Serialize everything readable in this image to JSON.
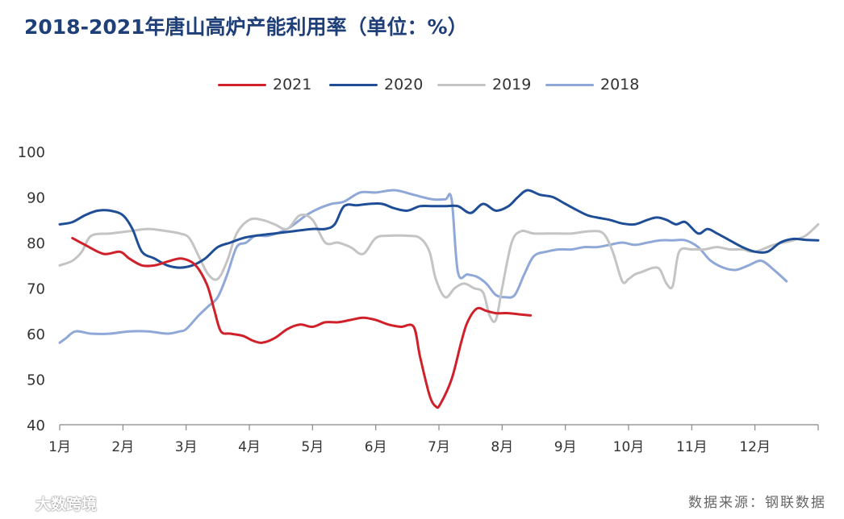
{
  "chart_data": {
    "type": "line",
    "title": "2018-2021年唐山高炉产能利用率（单位：%）",
    "source": "数据来源：钢联数据",
    "watermark": "大数跨境",
    "ylim": [
      40,
      100
    ],
    "yticks": [
      40,
      50,
      60,
      70,
      80,
      90,
      100
    ],
    "xlim": [
      1,
      13
    ],
    "xticks": [
      {
        "label": "1月",
        "pos": 1
      },
      {
        "label": "2月",
        "pos": 2
      },
      {
        "label": "3月",
        "pos": 3
      },
      {
        "label": "4月",
        "pos": 4
      },
      {
        "label": "5月",
        "pos": 5
      },
      {
        "label": "6月",
        "pos": 6
      },
      {
        "label": "7月",
        "pos": 7
      },
      {
        "label": "8月",
        "pos": 8
      },
      {
        "label": "9月",
        "pos": 9
      },
      {
        "label": "10月",
        "pos": 10
      },
      {
        "label": "11月",
        "pos": 11
      },
      {
        "label": "12月",
        "pos": 12
      }
    ],
    "legend_position": "top-center",
    "series": [
      {
        "name": "2021",
        "color": "#d0202a",
        "x": [
          1.2,
          1.4,
          1.7,
          1.95,
          2.1,
          2.3,
          2.5,
          2.7,
          2.9,
          3.05,
          3.15,
          3.25,
          3.35,
          3.45,
          3.55,
          3.7,
          3.9,
          4.05,
          4.2,
          4.4,
          4.6,
          4.8,
          5.0,
          5.2,
          5.4,
          5.6,
          5.8,
          6.0,
          6.2,
          6.4,
          6.6,
          6.7,
          6.85,
          6.95,
          7.02,
          7.2,
          7.35,
          7.45,
          7.6,
          7.75,
          7.9,
          8.1,
          8.3,
          8.45
        ],
        "values": [
          81,
          79.5,
          77.5,
          78,
          76.5,
          75,
          75,
          75.8,
          76.5,
          76,
          75,
          73,
          70,
          65,
          60.5,
          60,
          59.5,
          58.5,
          58,
          59,
          61,
          62,
          61.5,
          62.5,
          62.5,
          63,
          63.5,
          63,
          62,
          61.5,
          61.5,
          55,
          46.5,
          44,
          44.5,
          50,
          58,
          62.5,
          65.5,
          65,
          64.5,
          64.5,
          64.2,
          64
        ]
      },
      {
        "name": "2020",
        "color": "#1f4e96",
        "x": [
          1.0,
          1.2,
          1.4,
          1.6,
          1.8,
          2.0,
          2.15,
          2.3,
          2.5,
          2.7,
          2.9,
          3.1,
          3.3,
          3.5,
          3.7,
          3.9,
          4.1,
          4.4,
          4.7,
          5.0,
          5.2,
          5.35,
          5.5,
          5.7,
          5.9,
          6.1,
          6.3,
          6.5,
          6.7,
          6.9,
          7.1,
          7.3,
          7.5,
          7.7,
          7.9,
          8.1,
          8.25,
          8.4,
          8.6,
          8.8,
          9.0,
          9.2,
          9.35,
          9.5,
          9.7,
          9.9,
          10.1,
          10.3,
          10.45,
          10.6,
          10.75,
          10.9,
          11.1,
          11.25,
          11.4,
          11.6,
          11.8,
          12.0,
          12.2,
          12.4,
          12.6,
          12.8,
          13.0
        ],
        "values": [
          84,
          84.5,
          86,
          87,
          87,
          86,
          83,
          78,
          76.5,
          75,
          74.5,
          75,
          76.5,
          79,
          80,
          81,
          81.5,
          82,
          82.5,
          83,
          83,
          84,
          88,
          88.2,
          88.5,
          88.5,
          87.5,
          87,
          88,
          88,
          88,
          88,
          86.5,
          88.5,
          87,
          88,
          90,
          91.5,
          90.5,
          90,
          88.5,
          87,
          86,
          85.5,
          85,
          84.2,
          84,
          85,
          85.5,
          85,
          84,
          84.5,
          82,
          83,
          82,
          80.5,
          79,
          78,
          78,
          80,
          80.8,
          80.6,
          80.5
        ]
      },
      {
        "name": "2019",
        "color": "#c4c4c4",
        "x": [
          1.0,
          1.2,
          1.35,
          1.5,
          1.8,
          2.1,
          2.4,
          2.7,
          2.9,
          3.05,
          3.2,
          3.35,
          3.5,
          3.65,
          3.8,
          4.0,
          4.2,
          4.4,
          4.6,
          4.8,
          5.0,
          5.2,
          5.4,
          5.6,
          5.8,
          6.0,
          6.2,
          6.5,
          6.7,
          6.85,
          6.95,
          7.1,
          7.25,
          7.4,
          7.55,
          7.7,
          7.8,
          7.9,
          8.0,
          8.15,
          8.3,
          8.5,
          8.8,
          9.1,
          9.4,
          9.6,
          9.75,
          9.9,
          10.0,
          10.1,
          10.2,
          10.4,
          10.5,
          10.6,
          10.7,
          10.8,
          11.0,
          11.2,
          11.4,
          11.6,
          11.8,
          12.0,
          12.3,
          12.6,
          12.8,
          13.0
        ],
        "values": [
          75,
          76,
          78,
          81.5,
          82,
          82.5,
          83,
          82.5,
          82,
          81,
          77,
          73,
          72,
          76,
          82,
          85,
          85,
          84,
          83,
          86,
          85,
          80,
          80,
          79,
          77.5,
          81,
          81.5,
          81.5,
          81,
          78,
          72,
          68,
          70,
          71,
          70,
          69,
          64,
          63,
          70,
          80,
          82.5,
          82,
          82,
          82,
          82.5,
          82,
          78,
          71.5,
          72,
          73,
          73.5,
          74.5,
          74,
          71,
          70.5,
          78,
          78.5,
          78.5,
          79,
          78.5,
          78.5,
          78,
          79.5,
          80.5,
          81.5,
          84
        ]
      },
      {
        "name": "2018",
        "color": "#8fa8d8",
        "x": [
          1.0,
          1.1,
          1.25,
          1.5,
          1.8,
          2.1,
          2.4,
          2.7,
          2.9,
          3.0,
          3.2,
          3.35,
          3.5,
          3.65,
          3.8,
          3.95,
          4.1,
          4.3,
          4.6,
          4.9,
          5.1,
          5.3,
          5.5,
          5.75,
          6.0,
          6.3,
          6.6,
          6.9,
          7.1,
          7.2,
          7.3,
          7.45,
          7.6,
          7.75,
          7.9,
          8.05,
          8.2,
          8.35,
          8.5,
          8.7,
          8.9,
          9.1,
          9.3,
          9.5,
          9.7,
          9.9,
          10.1,
          10.3,
          10.5,
          10.7,
          10.9,
          11.1,
          11.3,
          11.5,
          11.7,
          11.9,
          12.1,
          12.3,
          12.5
        ],
        "values": [
          58,
          59,
          60.5,
          60,
          60,
          60.5,
          60.5,
          60,
          60.5,
          61,
          64,
          66,
          68,
          73,
          79,
          80,
          81.5,
          81.5,
          83,
          86,
          87.5,
          88.5,
          89,
          91,
          91,
          91.5,
          90.5,
          89.5,
          89.5,
          89.5,
          73.5,
          73,
          72.5,
          71,
          68.5,
          68,
          68.5,
          73,
          77,
          78,
          78.5,
          78.5,
          79,
          79,
          79.5,
          80,
          79.5,
          80,
          80.5,
          80.5,
          80.5,
          79,
          76,
          74.5,
          74,
          75,
          76,
          74,
          71.5
        ]
      }
    ]
  }
}
